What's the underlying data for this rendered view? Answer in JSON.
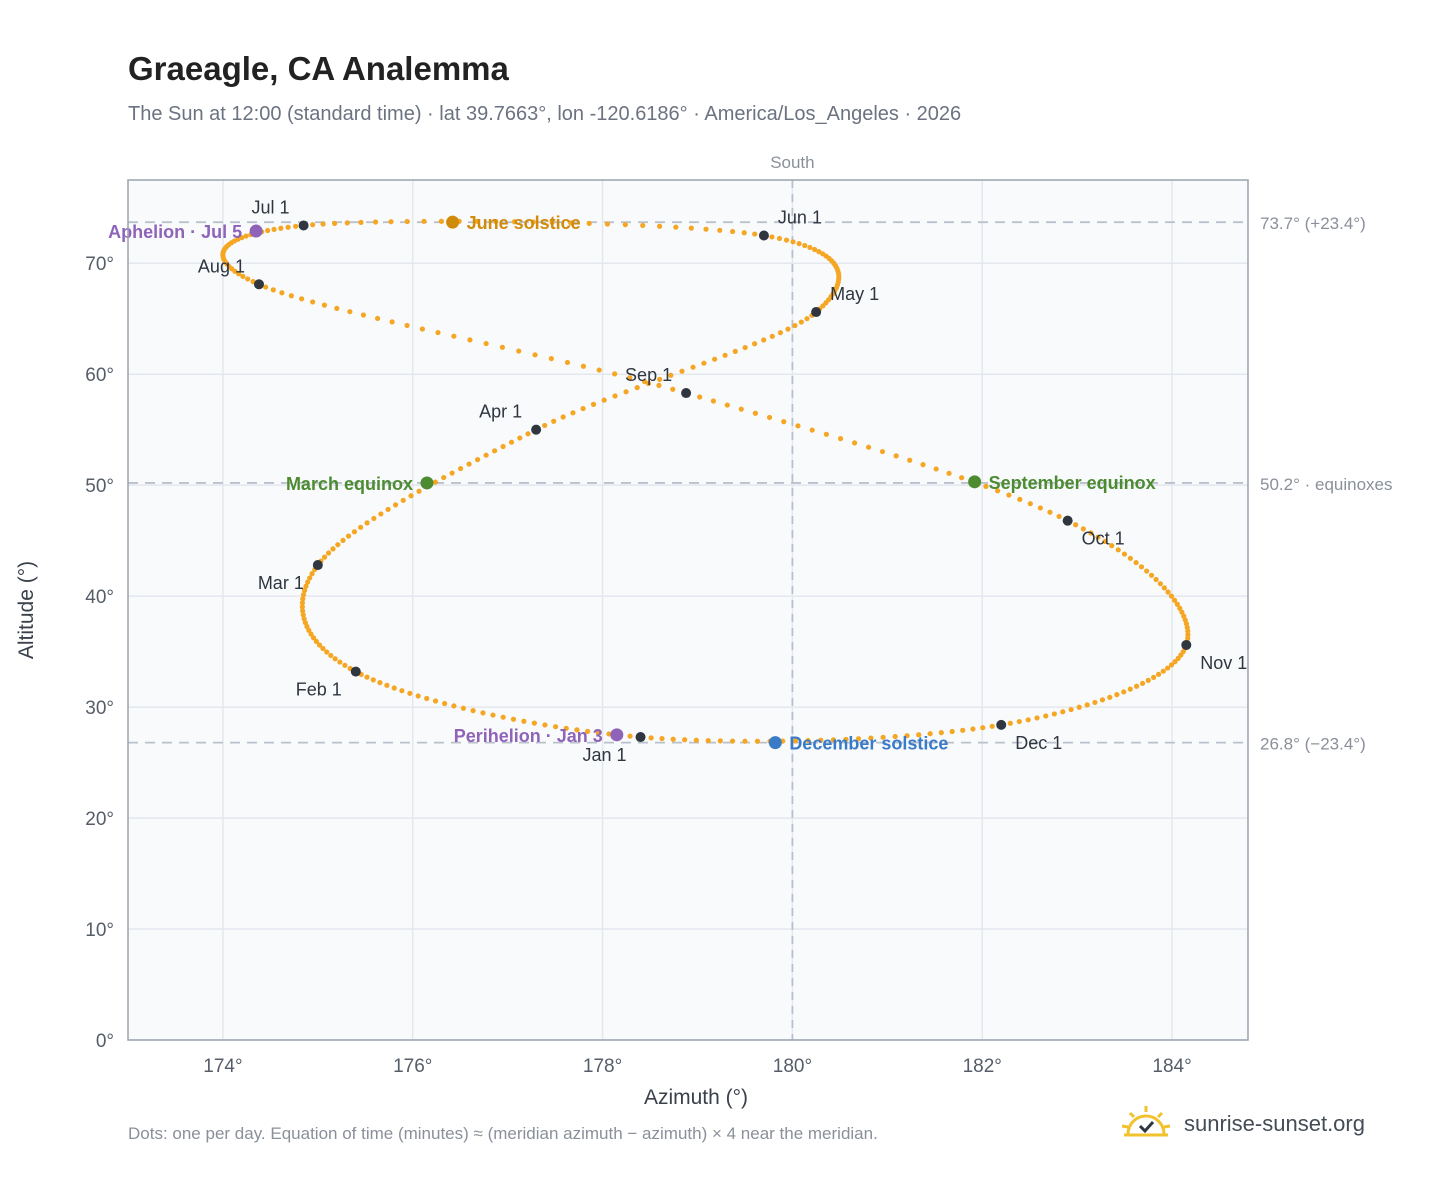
{
  "title": "Graeagle, CA Analemma",
  "subtitle": "The Sun at 12:00 (standard time) · lat 39.7663°, lon -120.6186° · America/Los_Angeles · 2026",
  "footnote": "Dots: one per day. Equation of time (minutes) ≈ (meridian azimuth − azimuth) × 4 near the meridian.",
  "brand": {
    "name": "sunrise-sunset.org",
    "icon": "sun-logo-icon"
  },
  "colors": {
    "curve": "#f5a623",
    "month_dot": "#2f3640",
    "solstice_june": "#d18b0b",
    "solstice_december": "#3a7bc8",
    "equinox": "#4d8b31",
    "apsis": "#8e63b8",
    "reference_line": "#b9c1cc",
    "plot_background": "#f8fafc",
    "grid": "#e4e8ee"
  },
  "chart_data": {
    "type": "scatter",
    "xlabel": "Azimuth (°)",
    "ylabel": "Altitude (°)",
    "xlim": [
      173.0,
      184.8
    ],
    "ylim": [
      0,
      77.5
    ],
    "x_ticks": [
      {
        "value": 174,
        "label": "174°"
      },
      {
        "value": 176,
        "label": "176°"
      },
      {
        "value": 178,
        "label": "178°"
      },
      {
        "value": 180,
        "label": "180°"
      },
      {
        "value": 182,
        "label": "182°"
      },
      {
        "value": 184,
        "label": "184°"
      }
    ],
    "y_ticks": [
      {
        "value": 0,
        "label": "0°"
      },
      {
        "value": 10,
        "label": "10°"
      },
      {
        "value": 20,
        "label": "20°"
      },
      {
        "value": 30,
        "label": "30°"
      },
      {
        "value": 40,
        "label": "40°"
      },
      {
        "value": 50,
        "label": "50°"
      },
      {
        "value": 60,
        "label": "60°"
      },
      {
        "value": 70,
        "label": "70°"
      }
    ],
    "grid": true,
    "meridian": {
      "azimuth": 180,
      "label": "South"
    },
    "reference_lines": [
      {
        "altitude": 73.7,
        "label": "73.7° (+23.4°)"
      },
      {
        "altitude": 50.2,
        "label": "50.2° · equinoxes"
      },
      {
        "altitude": 26.8,
        "label": "26.8° (−23.4°)"
      }
    ],
    "analemma_keypoints": [
      {
        "month": "Jan 1",
        "azimuth": 178.4,
        "altitude": 27.3
      },
      {
        "month": "Feb 1",
        "azimuth": 175.4,
        "altitude": 33.2
      },
      {
        "month": "Mar 1",
        "azimuth": 175.0,
        "altitude": 42.8
      },
      {
        "month": "Apr 1",
        "azimuth": 177.3,
        "altitude": 55.0
      },
      {
        "month": "May 1",
        "azimuth": 180.25,
        "altitude": 65.6
      },
      {
        "month": "Jun 1",
        "azimuth": 179.7,
        "altitude": 72.5
      },
      {
        "month": "Jul 1",
        "azimuth": 174.85,
        "altitude": 73.4
      },
      {
        "month": "Aug 1",
        "azimuth": 174.38,
        "altitude": 68.1
      },
      {
        "month": "Sep 1",
        "azimuth": 178.88,
        "altitude": 58.3
      },
      {
        "month": "Oct 1",
        "azimuth": 182.9,
        "altitude": 46.8
      },
      {
        "month": "Nov 1",
        "azimuth": 184.15,
        "altitude": 35.6
      },
      {
        "month": "Dec 1",
        "azimuth": 182.2,
        "altitude": 28.4
      }
    ],
    "month_markers": [
      {
        "label": "Jan 1",
        "azimuth": 178.4,
        "altitude": 27.3,
        "label_pos": "below-left"
      },
      {
        "label": "Feb 1",
        "azimuth": 175.4,
        "altitude": 33.2,
        "label_pos": "below-left"
      },
      {
        "label": "Mar 1",
        "azimuth": 175.0,
        "altitude": 42.8,
        "label_pos": "below-left"
      },
      {
        "label": "Apr 1",
        "azimuth": 177.3,
        "altitude": 55.0,
        "label_pos": "above-left"
      },
      {
        "label": "May 1",
        "azimuth": 180.25,
        "altitude": 65.6,
        "label_pos": "above-right"
      },
      {
        "label": "Jun 1",
        "azimuth": 179.7,
        "altitude": 72.5,
        "label_pos": "above-right"
      },
      {
        "label": "Jul 1",
        "azimuth": 174.85,
        "altitude": 73.4,
        "label_pos": "above-left"
      },
      {
        "label": "Aug 1",
        "azimuth": 174.38,
        "altitude": 68.1,
        "label_pos": "above-left"
      },
      {
        "label": "Sep 1",
        "azimuth": 178.88,
        "altitude": 58.3,
        "label_pos": "above-left"
      },
      {
        "label": "Oct 1",
        "azimuth": 182.9,
        "altitude": 46.8,
        "label_pos": "below-right"
      },
      {
        "label": "Nov 1",
        "azimuth": 184.15,
        "altitude": 35.6,
        "label_pos": "below-right"
      },
      {
        "label": "Dec 1",
        "azimuth": 182.2,
        "altitude": 28.4,
        "label_pos": "below-right"
      }
    ],
    "events": [
      {
        "label": "June solstice",
        "azimuth": 176.42,
        "altitude": 73.7,
        "kind": "solstice_june",
        "label_pos": "right"
      },
      {
        "label": "December solstice",
        "azimuth": 179.82,
        "altitude": 26.8,
        "kind": "solstice_december",
        "label_pos": "right"
      },
      {
        "label": "March equinox",
        "azimuth": 176.15,
        "altitude": 50.2,
        "kind": "equinox",
        "label_pos": "left"
      },
      {
        "label": "September equinox",
        "azimuth": 181.92,
        "altitude": 50.3,
        "kind": "equinox",
        "label_pos": "right"
      },
      {
        "label": "Aphelion · Jul 5",
        "azimuth": 174.35,
        "altitude": 72.9,
        "kind": "apsis",
        "label_pos": "left"
      },
      {
        "label": "Perihelion · Jan 3",
        "azimuth": 178.15,
        "altitude": 27.5,
        "kind": "apsis",
        "label_pos": "left"
      }
    ]
  }
}
